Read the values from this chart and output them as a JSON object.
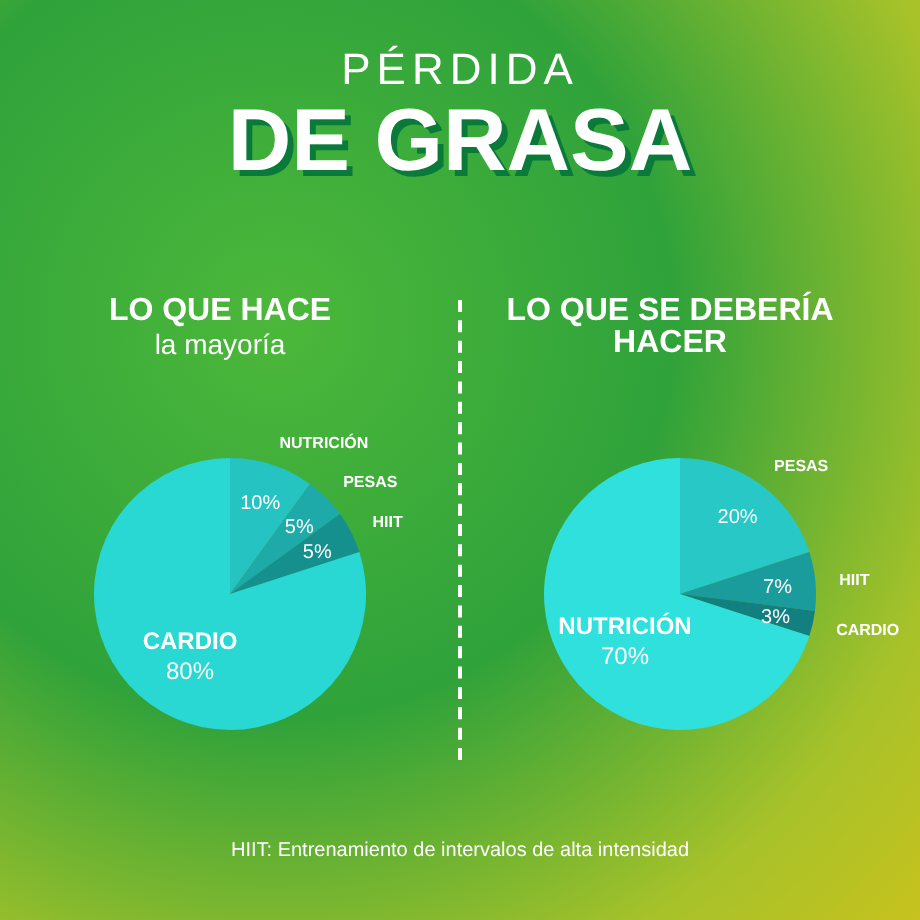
{
  "chart_data": [
    {
      "type": "other",
      "title": "PÉRDIDA",
      "subtitle": "DE GRASA",
      "annotations": [
        "HIIT: Entrenamiento de intervalos de alta intensidad"
      ]
    },
    {
      "type": "pie",
      "title": "LO QUE HACE",
      "subtitle": "la mayoría",
      "categories": [
        "NUTRICIÓN",
        "PESAS",
        "HIIT",
        "CARDIO"
      ],
      "values": [
        10,
        5,
        5,
        80
      ],
      "colors": [
        "#25c4c2",
        "#1eaaa9",
        "#168f8f",
        "#2ad8d3"
      ],
      "value_labels": [
        "10%",
        "5%",
        "5%",
        "80%"
      ]
    },
    {
      "type": "pie",
      "title": "LO QUE SE DEBERÍA HACER",
      "categories": [
        "PESAS",
        "HIIT",
        "CARDIO",
        "NUTRICIÓN"
      ],
      "values": [
        20,
        7,
        3,
        70
      ],
      "colors": [
        "#27c8c6",
        "#1a9c9c",
        "#127f80",
        "#2fe0dc"
      ],
      "value_labels": [
        "20%",
        "7%",
        "3%",
        "70%"
      ]
    }
  ]
}
